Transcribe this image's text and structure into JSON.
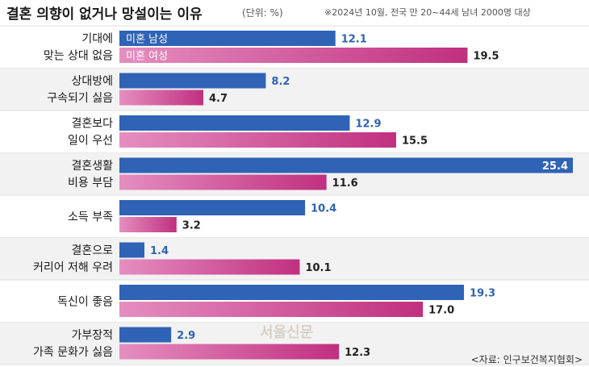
{
  "header": {
    "title": "결혼 의향이 없거나 망설이는 이유",
    "unit": "(단위: %)",
    "note": "※2024년 10월, 전국 만 20~44세 남녀 2000명 대상"
  },
  "source": "<자료: 인구보건복지협회>",
  "watermark": "서울신문",
  "colors": {
    "male": "#2f63b5",
    "female": "#e58ec0",
    "female_dark": "#c0307f",
    "male_label": "#2f63b5",
    "female_label": "#222222",
    "divider": "#dddddd",
    "row_alt": "#f2f2f2"
  },
  "chart_data": {
    "type": "bar",
    "orientation": "horizontal",
    "categories": [
      [
        "기대에",
        "맞는 상대 없음"
      ],
      [
        "상대방에",
        "구속되기 싫음"
      ],
      [
        "결혼보다",
        "일이 우선"
      ],
      [
        "결혼생활",
        "비용 부담"
      ],
      [
        "소득 부족"
      ],
      [
        "결혼으로",
        "커리어 저해 우려"
      ],
      [
        "독신이 좋음"
      ],
      [
        "가부장적",
        "가족 문화가 싫음"
      ]
    ],
    "series": [
      {
        "name": "미혼 남성",
        "values": [
          12.1,
          8.2,
          12.9,
          25.4,
          10.4,
          1.4,
          19.3,
          2.9
        ]
      },
      {
        "name": "미혼 여성",
        "values": [
          19.5,
          4.7,
          15.5,
          11.6,
          3.2,
          10.1,
          17.0,
          12.3
        ]
      }
    ],
    "legend": "inline-first-row",
    "xlim": [
      0,
      25.4
    ]
  }
}
